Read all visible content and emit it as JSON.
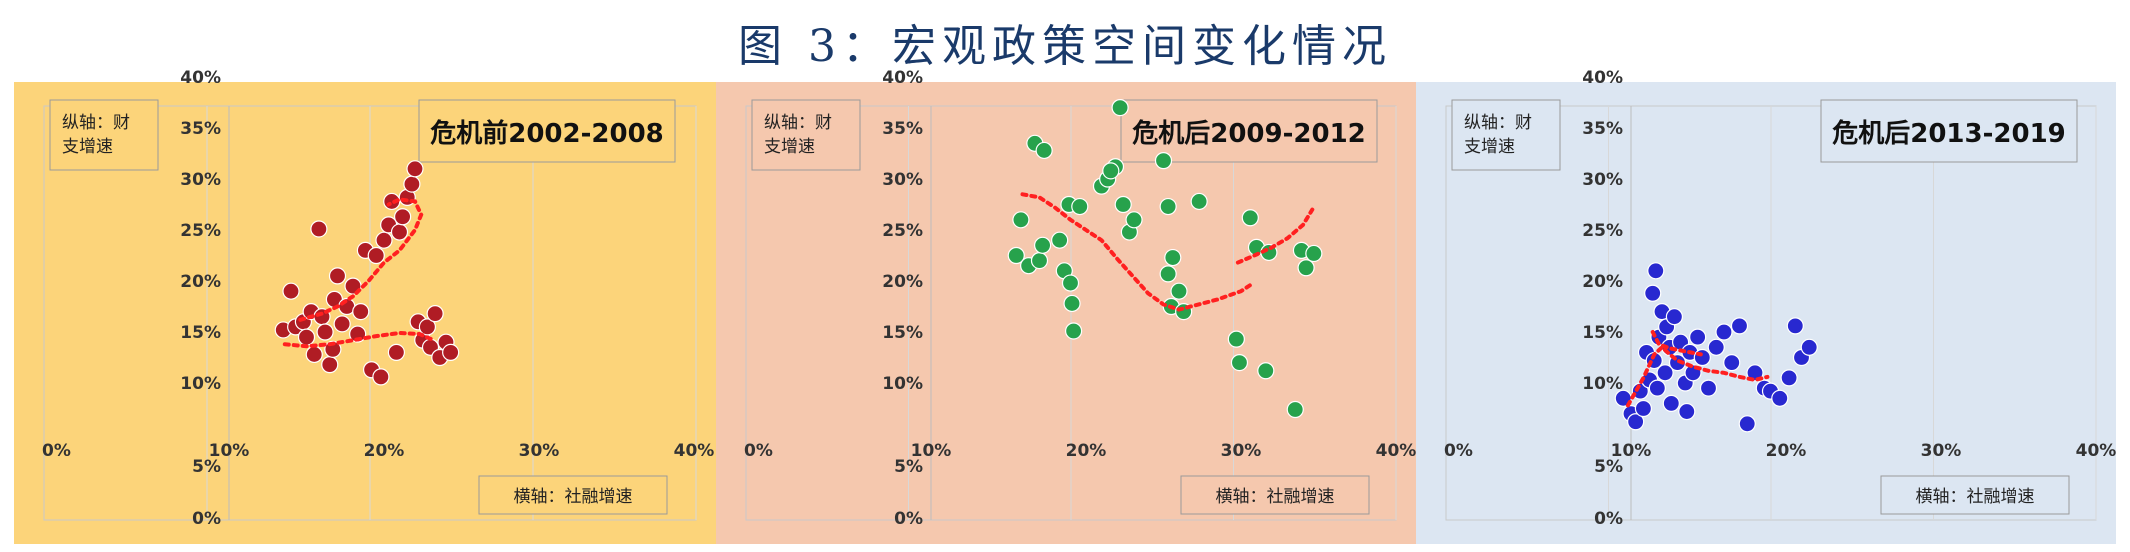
{
  "figure_title": "图 3：宏观政策空间变化情况",
  "chart_data": [
    {
      "type": "scatter",
      "title": "危机前2002-2008",
      "ylabel": "纵轴：财支增速",
      "xlabel": "横轴：社融增速",
      "x_ticks": [
        "0%",
        "10%",
        "20%",
        "30%",
        "40%"
      ],
      "y_ticks": [
        "0%",
        "5%",
        "10%",
        "15%",
        "20%",
        "25%",
        "30%",
        "35%",
        "40%"
      ],
      "xlim": [
        0,
        40
      ],
      "ylim": [
        0,
        40
      ],
      "colors": {
        "background": "#fcd47a",
        "point": "#b01c24",
        "trend": "#ff2020"
      },
      "points": [
        [
          13.5,
          15.2
        ],
        [
          14.0,
          19.0
        ],
        [
          14.3,
          15.5
        ],
        [
          14.8,
          16.0
        ],
        [
          15.0,
          14.5
        ],
        [
          15.3,
          17.0
        ],
        [
          15.5,
          12.8
        ],
        [
          15.8,
          25.1
        ],
        [
          16.0,
          16.5
        ],
        [
          16.2,
          15.0
        ],
        [
          16.5,
          11.8
        ],
        [
          16.8,
          18.2
        ],
        [
          17.0,
          20.5
        ],
        [
          17.3,
          15.8
        ],
        [
          17.6,
          17.5
        ],
        [
          18.0,
          19.5
        ],
        [
          18.3,
          14.8
        ],
        [
          18.5,
          17.0
        ],
        [
          18.8,
          23.0
        ],
        [
          19.2,
          11.3
        ],
        [
          19.5,
          22.5
        ],
        [
          19.8,
          10.6
        ],
        [
          20.0,
          24.0
        ],
        [
          20.3,
          25.5
        ],
        [
          20.5,
          27.8
        ],
        [
          20.8,
          13.0
        ],
        [
          21.0,
          24.8
        ],
        [
          21.2,
          26.3
        ],
        [
          21.5,
          28.2
        ],
        [
          21.8,
          29.5
        ],
        [
          22.0,
          31.0
        ],
        [
          22.2,
          16.0
        ],
        [
          22.5,
          14.2
        ],
        [
          22.8,
          15.5
        ],
        [
          23.0,
          13.5
        ],
        [
          23.3,
          16.8
        ],
        [
          23.6,
          12.5
        ],
        [
          24.0,
          14.0
        ],
        [
          24.3,
          13.0
        ],
        [
          16.7,
          13.3
        ]
      ],
      "trend": [
        [
          [
            13.6,
            13.8
          ],
          [
            15.0,
            13.6
          ],
          [
            16.5,
            13.8
          ],
          [
            18.0,
            14.2
          ],
          [
            19.5,
            14.6
          ],
          [
            21.0,
            14.9
          ],
          [
            22.3,
            14.8
          ],
          [
            23.2,
            14.2
          ]
        ],
        [
          [
            14.6,
            16.2
          ],
          [
            16.0,
            16.8
          ],
          [
            17.0,
            17.5
          ],
          [
            18.0,
            18.5
          ],
          [
            19.0,
            20.0
          ],
          [
            20.0,
            21.8
          ],
          [
            21.0,
            23.0
          ],
          [
            22.0,
            25.0
          ],
          [
            22.4,
            26.5
          ],
          [
            22.0,
            27.8
          ],
          [
            21.0,
            28.0
          ],
          [
            20.3,
            27.5
          ]
        ]
      ]
    },
    {
      "type": "scatter",
      "title": "危机后2009-2012",
      "ylabel": "纵轴：财支增速",
      "xlabel": "横轴：社融增速",
      "x_ticks": [
        "0%",
        "10%",
        "20%",
        "30%",
        "40%"
      ],
      "y_ticks": [
        "0%",
        "5%",
        "10%",
        "15%",
        "20%",
        "25%",
        "30%",
        "35%",
        "40%"
      ],
      "xlim": [
        0,
        40
      ],
      "ylim": [
        0,
        40
      ],
      "colors": {
        "background": "#f5c8ae",
        "point": "#27a24c",
        "trend": "#ff2020"
      },
      "points": [
        [
          15.5,
          22.5
        ],
        [
          15.8,
          26.0
        ],
        [
          16.3,
          21.5
        ],
        [
          16.7,
          33.5
        ],
        [
          17.0,
          22.0
        ],
        [
          17.2,
          23.5
        ],
        [
          17.3,
          32.8
        ],
        [
          18.3,
          24.0
        ],
        [
          18.6,
          21.0
        ],
        [
          18.9,
          27.5
        ],
        [
          19.0,
          19.8
        ],
        [
          19.1,
          17.8
        ],
        [
          19.2,
          15.1
        ],
        [
          19.6,
          27.3
        ],
        [
          21.0,
          29.3
        ],
        [
          21.4,
          30.0
        ],
        [
          21.9,
          31.2
        ],
        [
          21.6,
          30.8
        ],
        [
          22.2,
          37.0
        ],
        [
          22.4,
          27.5
        ],
        [
          22.8,
          24.8
        ],
        [
          23.1,
          26.0
        ],
        [
          25.0,
          31.8
        ],
        [
          25.3,
          27.3
        ],
        [
          25.6,
          22.3
        ],
        [
          25.3,
          20.7
        ],
        [
          25.5,
          17.5
        ],
        [
          26.0,
          19.0
        ],
        [
          26.3,
          17.0
        ],
        [
          27.3,
          27.8
        ],
        [
          29.7,
          14.3
        ],
        [
          29.9,
          12.0
        ],
        [
          30.6,
          26.2
        ],
        [
          31.0,
          23.3
        ],
        [
          31.6,
          11.2
        ],
        [
          31.8,
          22.8
        ],
        [
          33.5,
          7.4
        ],
        [
          33.9,
          23.0
        ],
        [
          34.2,
          21.3
        ],
        [
          34.7,
          22.7
        ]
      ],
      "trend": [
        [
          [
            15.9,
            28.5
          ],
          [
            17.0,
            28.2
          ],
          [
            18.0,
            27.2
          ],
          [
            19.0,
            26.0
          ],
          [
            20.0,
            25.0
          ],
          [
            21.0,
            24.0
          ],
          [
            22.0,
            22.2
          ],
          [
            23.0,
            20.5
          ],
          [
            24.0,
            18.8
          ],
          [
            25.0,
            17.7
          ],
          [
            26.0,
            17.2
          ],
          [
            27.0,
            17.6
          ],
          [
            28.5,
            18.2
          ],
          [
            30.0,
            19.0
          ],
          [
            30.8,
            19.8
          ]
        ],
        [
          [
            29.8,
            21.8
          ],
          [
            31.0,
            22.6
          ],
          [
            32.0,
            23.3
          ],
          [
            33.0,
            24.2
          ],
          [
            34.0,
            25.5
          ],
          [
            34.6,
            27.0
          ]
        ]
      ]
    },
    {
      "type": "scatter",
      "title": "危机后2013-2019",
      "ylabel": "纵轴：财支增速",
      "xlabel": "横轴：社融增速",
      "x_ticks": [
        "0%",
        "10%",
        "20%",
        "30%",
        "40%"
      ],
      "y_ticks": [
        "0%",
        "5%",
        "10%",
        "15%",
        "20%",
        "25%",
        "30%",
        "35%",
        "40%"
      ],
      "xlim": [
        0,
        40
      ],
      "ylim": [
        0,
        40
      ],
      "colors": {
        "background": "#dce6f2",
        "point": "#2828d0",
        "trend": "#ff2020"
      },
      "points": [
        [
          9.5,
          8.5
        ],
        [
          10.0,
          7.0
        ],
        [
          10.3,
          6.2
        ],
        [
          10.6,
          9.2
        ],
        [
          10.8,
          7.5
        ],
        [
          11.0,
          13.0
        ],
        [
          11.2,
          10.3
        ],
        [
          11.4,
          18.8
        ],
        [
          11.5,
          12.2
        ],
        [
          11.6,
          21.0
        ],
        [
          11.7,
          9.5
        ],
        [
          11.8,
          14.5
        ],
        [
          12.0,
          17.0
        ],
        [
          12.2,
          11.0
        ],
        [
          12.3,
          15.5
        ],
        [
          12.5,
          13.5
        ],
        [
          12.6,
          8.0
        ],
        [
          12.8,
          16.5
        ],
        [
          13.0,
          12.0
        ],
        [
          13.2,
          14.0
        ],
        [
          13.5,
          10.0
        ],
        [
          13.6,
          7.2
        ],
        [
          13.8,
          13.0
        ],
        [
          14.0,
          11.0
        ],
        [
          14.3,
          14.5
        ],
        [
          14.6,
          12.5
        ],
        [
          15.0,
          9.5
        ],
        [
          15.5,
          13.5
        ],
        [
          16.0,
          15.0
        ],
        [
          16.5,
          12.0
        ],
        [
          17.0,
          15.6
        ],
        [
          17.5,
          6.0
        ],
        [
          18.0,
          11.0
        ],
        [
          18.6,
          9.5
        ],
        [
          19.0,
          9.2
        ],
        [
          19.6,
          8.5
        ],
        [
          20.2,
          10.5
        ],
        [
          20.6,
          15.6
        ],
        [
          21.0,
          12.5
        ],
        [
          21.5,
          13.5
        ]
      ],
      "trend": [
        [
          [
            9.8,
            7.8
          ],
          [
            10.8,
            10.5
          ],
          [
            11.5,
            12.8
          ],
          [
            12.0,
            13.5
          ],
          [
            12.5,
            12.8
          ],
          [
            13.0,
            12.2
          ],
          [
            14.0,
            11.6
          ],
          [
            15.0,
            11.2
          ],
          [
            16.0,
            11.0
          ],
          [
            17.0,
            10.6
          ],
          [
            18.0,
            10.3
          ],
          [
            18.8,
            10.6
          ]
        ],
        [
          [
            11.4,
            15.0
          ],
          [
            11.8,
            13.8
          ],
          [
            12.5,
            13.4
          ],
          [
            13.5,
            13.1
          ],
          [
            14.5,
            12.8
          ]
        ]
      ]
    }
  ]
}
